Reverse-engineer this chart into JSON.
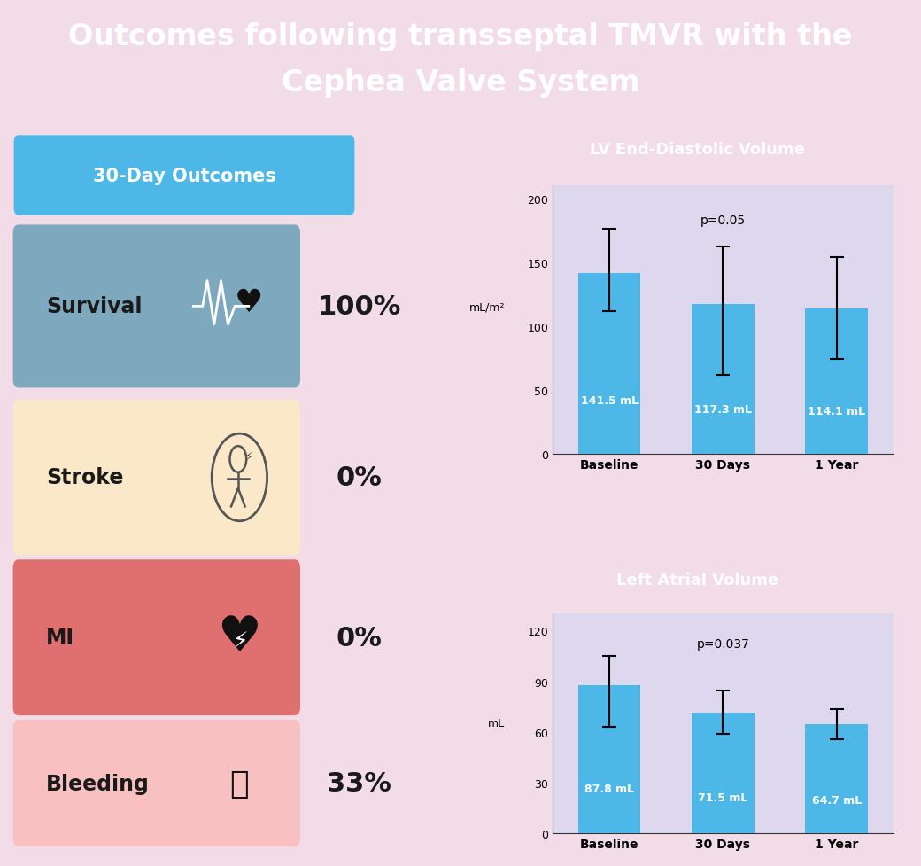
{
  "title_line1": "Outcomes following transseptal TMVR with the",
  "title_line2": "Cephea Valve System",
  "title_bg_color": "#4DB8E8",
  "title_text_color": "#FFFFFF",
  "main_bg_color": "#F2DCE8",
  "outcomes_title": "30-Day Outcomes",
  "outcomes_title_bg": "#4DB8E8",
  "outcomes_title_text": "#FFFFFF",
  "outcome_items": [
    {
      "label": "Survival",
      "value": "100%",
      "bg_color": "#7EA8BE",
      "text_color": "#1a1a1a"
    },
    {
      "label": "Stroke",
      "value": "0%",
      "bg_color": "#FAE8C8",
      "text_color": "#1a1a1a"
    },
    {
      "label": "MI",
      "value": "0%",
      "bg_color": "#E07070",
      "text_color": "#1a1a1a"
    },
    {
      "label": "Bleeding",
      "value": "33%",
      "bg_color": "#F8C0C0",
      "text_color": "#1a1a1a"
    }
  ],
  "chart1": {
    "title": "LV End-Diastolic Volume",
    "title_bg": "#4DB8E8",
    "title_text_color": "#FFFFFF",
    "chart_bg": "#DDD8EE",
    "ylabel": "mL/m²",
    "categories": [
      "Baseline",
      "30 Days",
      "1 Year"
    ],
    "values": [
      141.5,
      117.3,
      114.1
    ],
    "errors_upper": [
      35,
      45,
      40
    ],
    "errors_lower": [
      30,
      55,
      40
    ],
    "bar_color": "#4DB8E8",
    "bar_labels": [
      "141.5 mL",
      "117.3 mL",
      "114.1 mL"
    ],
    "p_value": "p=0.05",
    "ylim": [
      0,
      210
    ],
    "yticks": [
      0,
      50,
      100,
      150,
      200
    ]
  },
  "chart2": {
    "title": "Left Atrial Volume",
    "title_bg": "#4DB8E8",
    "title_text_color": "#FFFFFF",
    "chart_bg": "#DDD8EE",
    "ylabel": "mL",
    "categories": [
      "Baseline",
      "30 Days",
      "1 Year"
    ],
    "values": [
      87.8,
      71.5,
      64.7
    ],
    "errors_upper": [
      17,
      13,
      9
    ],
    "errors_lower": [
      25,
      13,
      9
    ],
    "bar_color": "#4DB8E8",
    "bar_labels": [
      "87.8 mL",
      "71.5 mL",
      "64.7 mL"
    ],
    "p_value": "p=0.037",
    "ylim": [
      0,
      130
    ],
    "yticks": [
      0,
      30,
      60,
      90,
      120
    ]
  }
}
